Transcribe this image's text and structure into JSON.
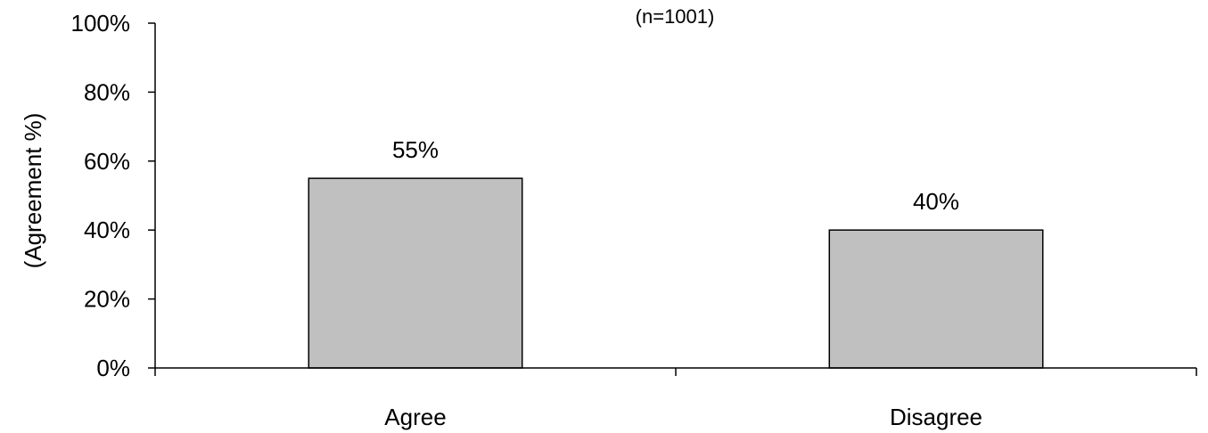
{
  "chart_data": {
    "type": "bar",
    "subtitle": "(n=1001)",
    "ylabel": "(Agreement %)",
    "xlabel": "",
    "categories": [
      "Agree",
      "Disagree"
    ],
    "values": [
      55,
      40
    ],
    "data_labels": [
      "55%",
      "40%"
    ],
    "ylim": [
      0,
      100
    ],
    "yticks": [
      0,
      20,
      40,
      60,
      80,
      100
    ],
    "ytick_labels": [
      "0%",
      "20%",
      "40%",
      "60%",
      "80%",
      "100%"
    ],
    "grid": false,
    "legend": "none",
    "bar_color": "#c0c0c0",
    "bar_edge_color": "#000000"
  }
}
